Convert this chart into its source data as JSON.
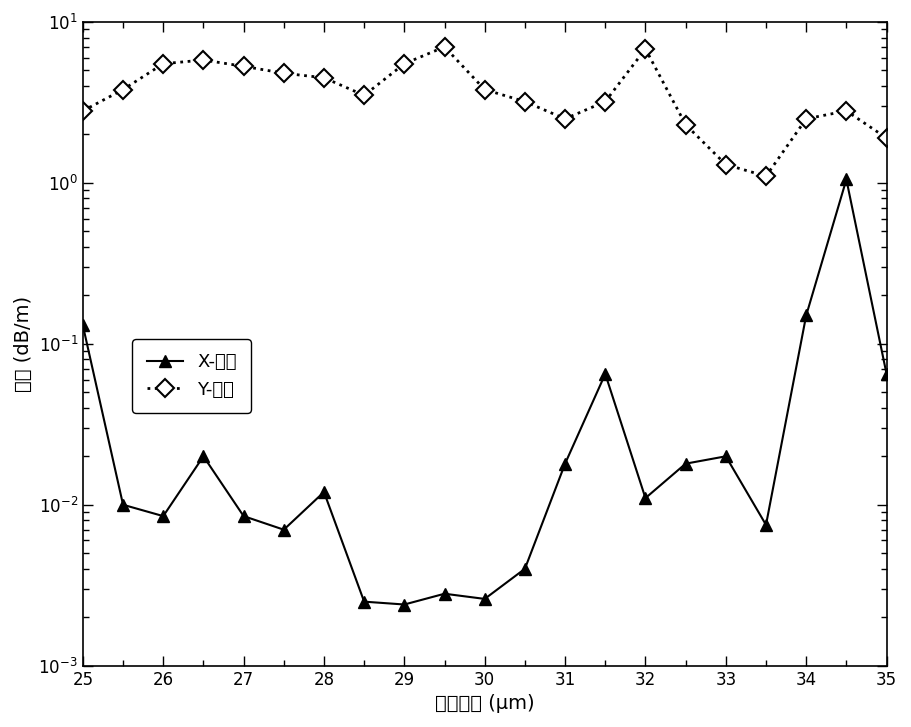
{
  "x": [
    25.0,
    25.5,
    26.0,
    26.5,
    27.0,
    27.5,
    28.0,
    28.5,
    29.0,
    29.5,
    30.0,
    30.5,
    31.0,
    31.5,
    32.0,
    32.5,
    33.0,
    33.5,
    34.0,
    34.5,
    35.0
  ],
  "y_x_pol": [
    0.13,
    0.01,
    0.0085,
    0.02,
    0.0085,
    0.007,
    0.012,
    0.0025,
    0.0024,
    0.0028,
    0.0026,
    0.004,
    0.018,
    0.065,
    0.011,
    0.018,
    0.02,
    0.0075,
    0.15,
    1.05,
    0.065
  ],
  "y_y_pol": [
    2.8,
    3.8,
    5.5,
    5.8,
    5.3,
    4.8,
    4.5,
    3.5,
    5.5,
    7.0,
    3.8,
    3.2,
    2.5,
    3.2,
    6.8,
    2.3,
    1.3,
    1.1,
    2.5,
    2.8,
    1.9
  ],
  "xlabel": "纤芯直径 (μm)",
  "ylabel": "损耗 (dB/m)",
  "xlim": [
    25,
    35
  ],
  "xticks": [
    25,
    26,
    27,
    28,
    29,
    30,
    31,
    32,
    33,
    34,
    35
  ],
  "legend_x": "X-偏振",
  "legend_y": "Y-偏振",
  "line_color": "black",
  "bg_color": "white"
}
